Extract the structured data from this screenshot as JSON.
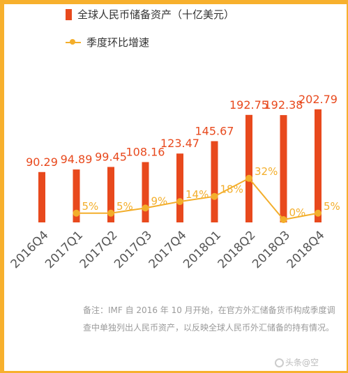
{
  "chart_data": {
    "type": "bar",
    "categories": [
      "2016Q4",
      "2017Q1",
      "2017Q2",
      "2017Q3",
      "2017Q4",
      "2018Q1",
      "2018Q2",
      "2018Q3",
      "2018Q4"
    ],
    "series": [
      {
        "name": "全球人民币储备资产（十亿美元）",
        "type": "bar",
        "color": "#e8491d",
        "values": [
          90.29,
          94.89,
          99.45,
          108.16,
          123.47,
          145.67,
          192.75,
          192.38,
          202.79
        ],
        "labels": [
          "90.29",
          "94.89",
          "99.45",
          "108.16",
          "123.47",
          "145.67",
          "192.75",
          "192.38",
          "202.79"
        ]
      },
      {
        "name": "季度环比增速",
        "type": "line",
        "color": "#f3ae2b",
        "values": [
          null,
          5,
          5,
          9,
          14,
          18,
          32,
          0,
          5
        ],
        "labels": [
          null,
          "5%",
          "5%",
          "9%",
          "14%",
          "18%",
          "32%",
          "0%",
          "5%"
        ]
      }
    ],
    "ylim": [
      0,
      215
    ],
    "grid": false,
    "legend": "top"
  },
  "legend": {
    "bar_label": "全球人民币储备资产（十亿美元）",
    "line_label": "季度环比增速"
  },
  "note": "备注：IMF 自 2016 年 10 月开始，在官方外汇储备货币构成季度调查中单独列出人民币资产，以反映全球人民币外汇储备的持有情况。",
  "watermark": "头条@空"
}
